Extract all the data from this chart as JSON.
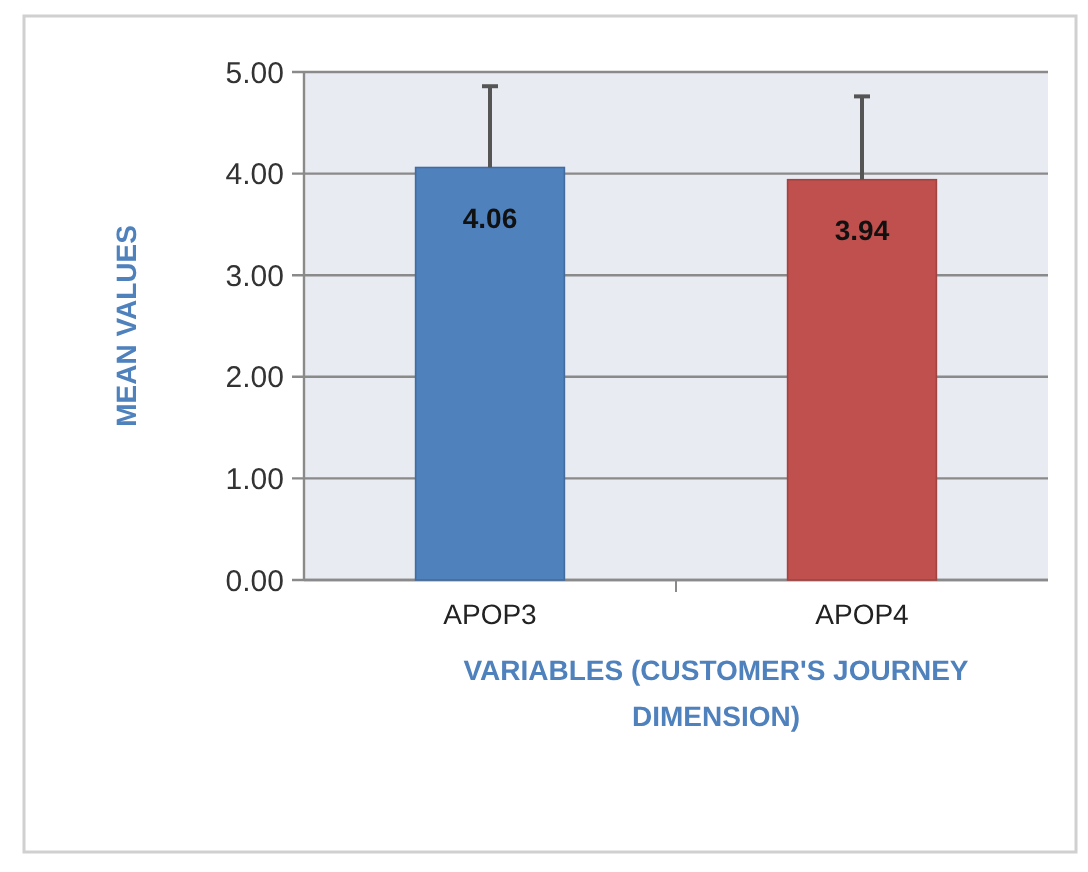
{
  "chart_data": {
    "type": "bar",
    "xlabel": "VARIABLES (CUSTOMER'S JOURNEY DIMENSION)",
    "ylabel": "MEAN VALUES",
    "categories": [
      "APOP3",
      "APOP4"
    ],
    "values": [
      4.06,
      3.94
    ],
    "colors": [
      "#4f81bd",
      "#c0504d"
    ],
    "errors": [
      [
        4.06,
        4.86
      ],
      [
        3.94,
        4.76
      ]
    ],
    "ylim": [
      0,
      5
    ],
    "yticks": [
      {
        "value": 0,
        "label": "0.00"
      },
      {
        "value": 1,
        "label": "1.00"
      },
      {
        "value": 2,
        "label": "2.00"
      },
      {
        "value": 3,
        "label": "3.00"
      },
      {
        "value": 4,
        "label": "4.00"
      },
      {
        "value": 5,
        "label": "5.00"
      }
    ],
    "grid": "y",
    "data_labels": true
  }
}
